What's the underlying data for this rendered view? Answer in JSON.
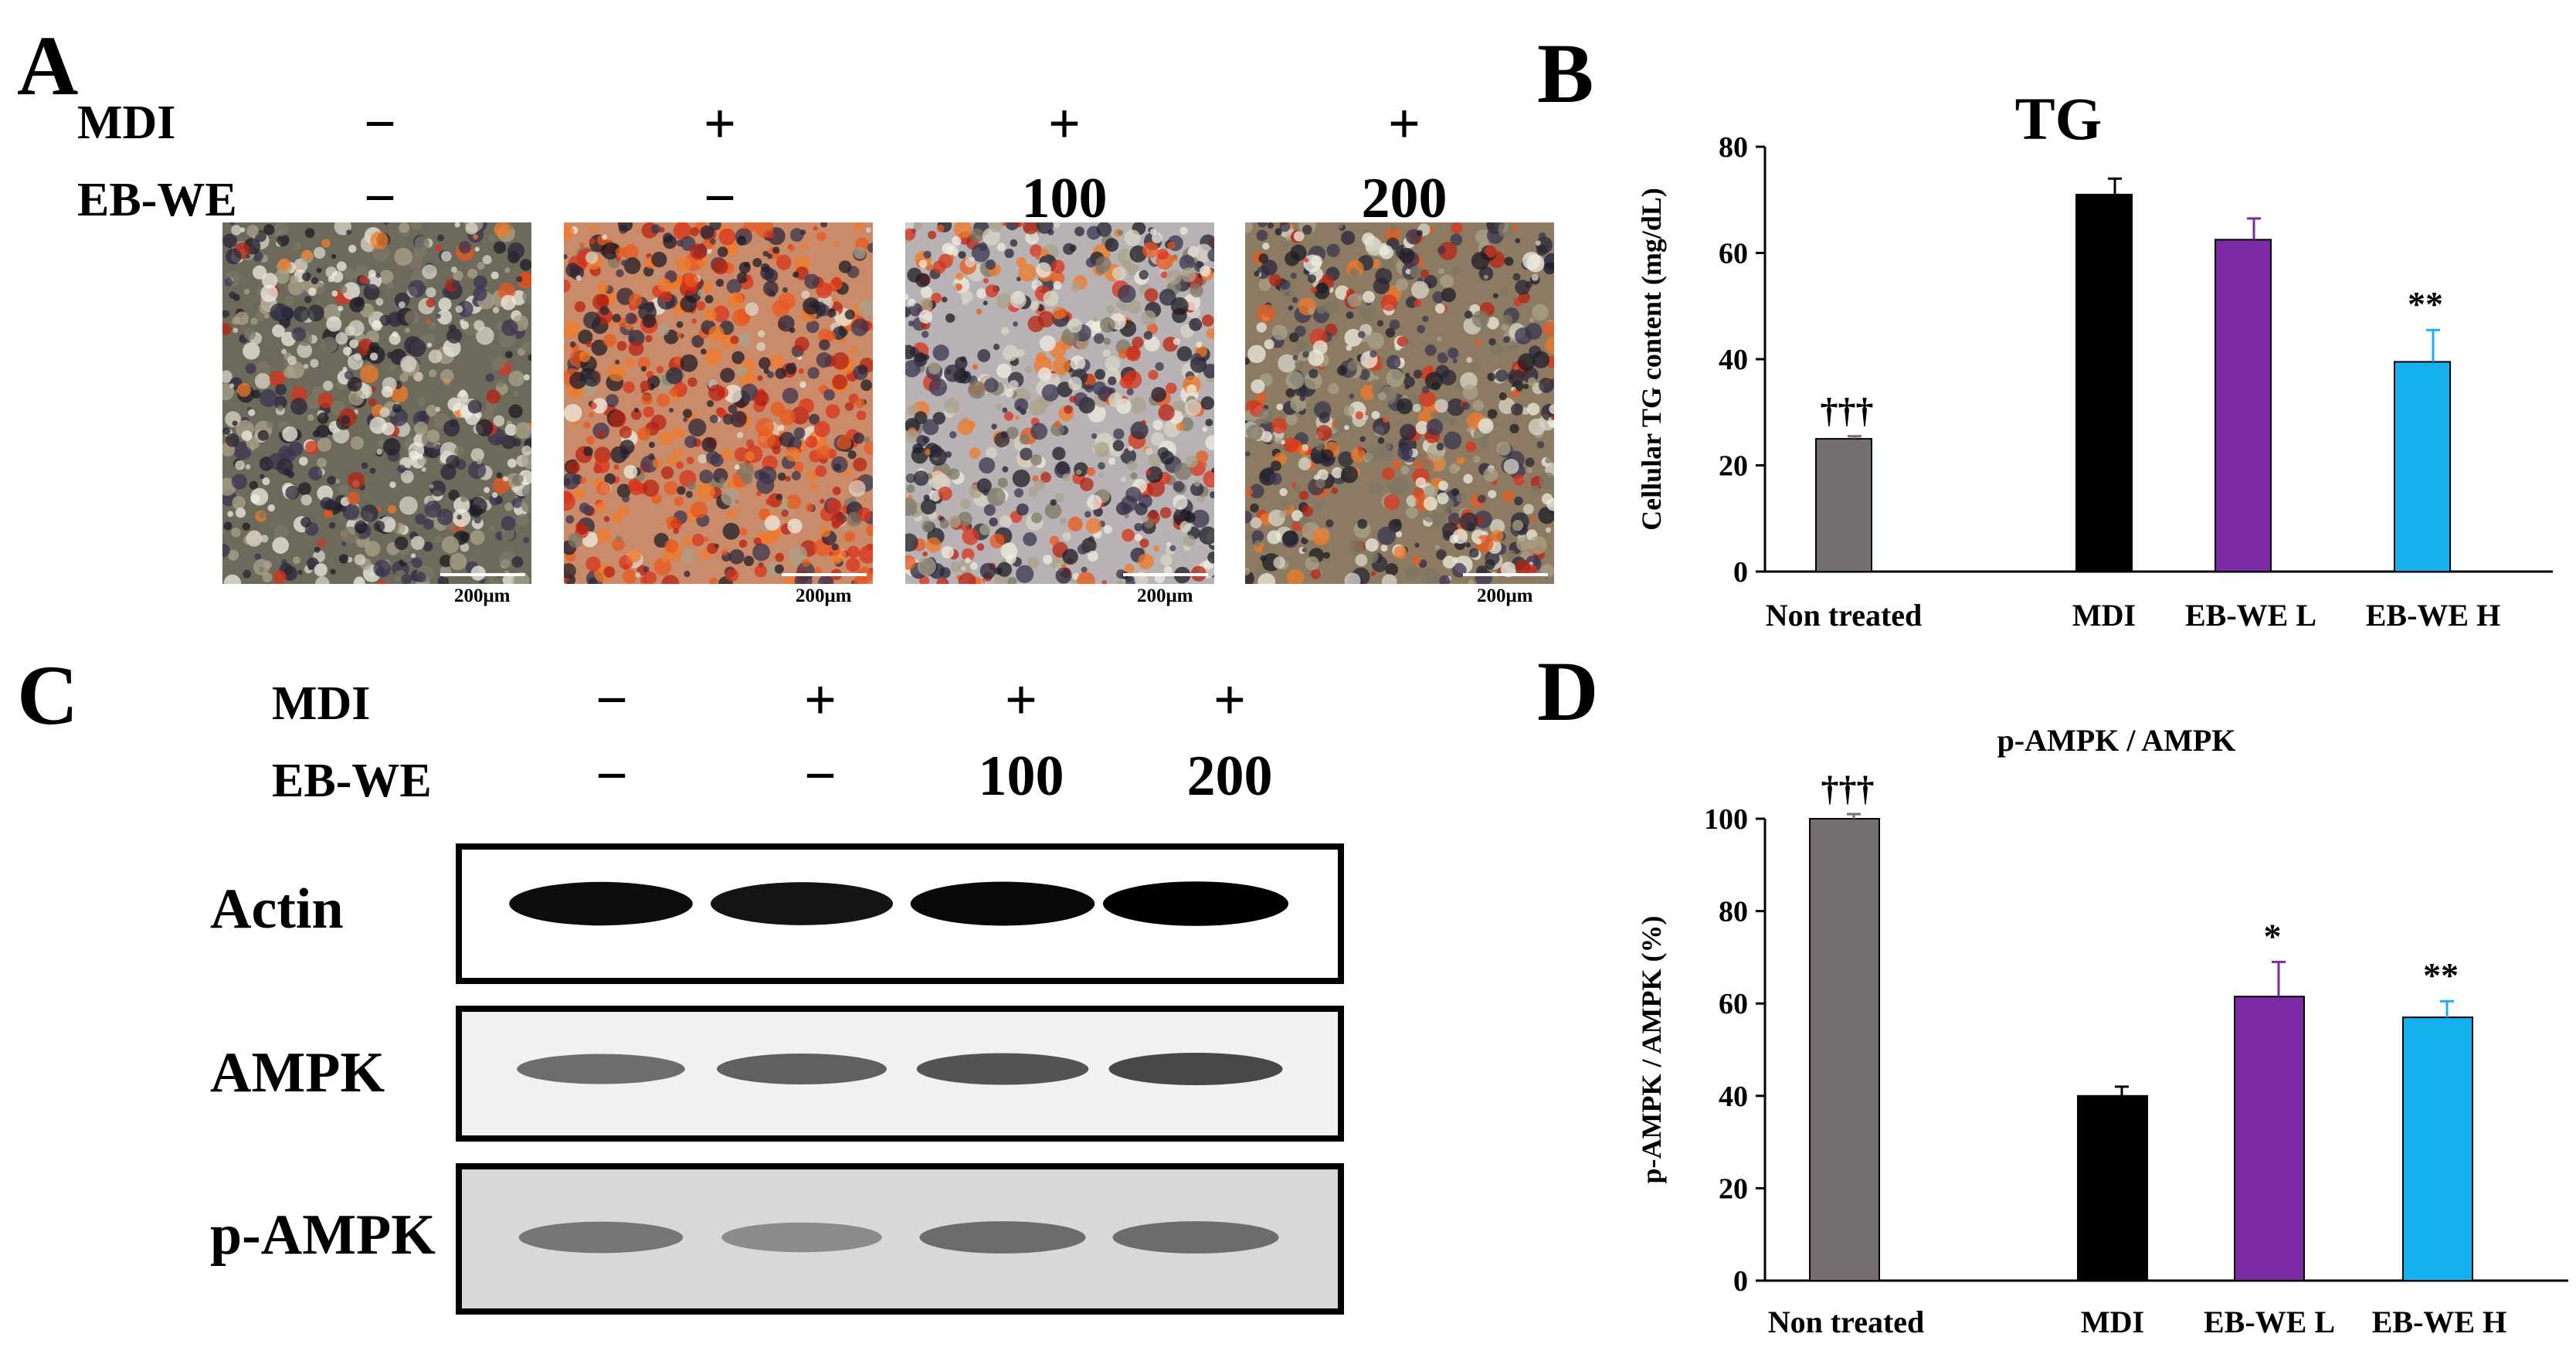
{
  "panels": {
    "a": "A",
    "b": "B",
    "c": "C",
    "d": "D"
  },
  "conditions_a": {
    "mdi_label": "MDI",
    "ebwe_label": "EB-WE",
    "mdi": [
      "−",
      "+",
      "+",
      "+"
    ],
    "ebwe": [
      "−",
      "−",
      "100",
      "200"
    ]
  },
  "micrographs": {
    "scale_bar": "200μm",
    "items": [
      {
        "name": "non-treated"
      },
      {
        "name": "mdi"
      },
      {
        "name": "ebwe-100"
      },
      {
        "name": "ebwe-200"
      }
    ]
  },
  "conditions_c": {
    "mdi_label": "MDI",
    "ebwe_label": "EB-WE",
    "mdi": [
      "−",
      "+",
      "+",
      "+"
    ],
    "ebwe": [
      "−",
      "−",
      "100",
      "200"
    ]
  },
  "blot": {
    "rows": [
      {
        "label": "Actin",
        "band_intensity": [
          0.95,
          0.92,
          0.97,
          1.0
        ]
      },
      {
        "label": "AMPK",
        "band_intensity": [
          0.55,
          0.6,
          0.65,
          0.7
        ]
      },
      {
        "label": "p-AMPK",
        "band_intensity": [
          0.45,
          0.35,
          0.5,
          0.5
        ]
      }
    ]
  },
  "colors": {
    "non_treated": "#75706f",
    "mdi": "#000000",
    "ebwe_l": "#7b2aa3",
    "ebwe_h": "#15b2ef"
  },
  "chart_data": [
    {
      "type": "bar",
      "title": "TG",
      "xlabel": "",
      "ylabel": "Cellular TG content (mg/dL)",
      "ylim": [
        0,
        80
      ],
      "yticks": [
        0,
        20,
        40,
        60,
        80
      ],
      "categories": [
        "Non treated",
        "MDI",
        "EB-WE L",
        "EB-WE H"
      ],
      "values": [
        25,
        71,
        62.5,
        39.5
      ],
      "errors": [
        0.5,
        3,
        4,
        6
      ],
      "annotations": [
        "†††",
        "",
        "",
        "**"
      ],
      "grid": false
    },
    {
      "type": "bar",
      "title": "p-AMPK / AMPK",
      "xlabel": "",
      "ylabel": "p-AMPK / AMPK (%)",
      "ylim": [
        0,
        100
      ],
      "yticks": [
        0,
        20,
        40,
        60,
        80,
        100
      ],
      "categories": [
        "Non treated",
        "MDI",
        "EB-WE L",
        "EB-WE H"
      ],
      "values": [
        100,
        40,
        61.5,
        57
      ],
      "errors": [
        1,
        2,
        7.5,
        3.5
      ],
      "annotations": [
        "†††",
        "",
        "*",
        "**"
      ],
      "grid": false
    }
  ]
}
